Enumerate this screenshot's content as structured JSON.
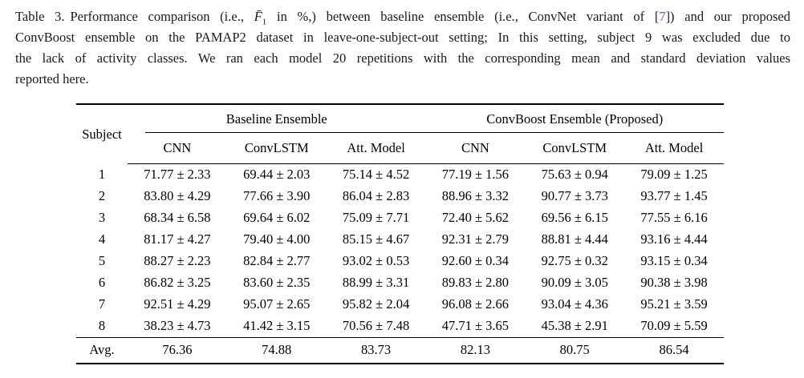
{
  "caption": {
    "label": "Table 3.",
    "line1_pre_math": "Performance comparison (i.e., ",
    "math_symbol": "F̄",
    "math_subscript": "1",
    "line1_mid": " in %,) between baseline ensemble (i.e., ConvNet variant of [",
    "ref_number": "7",
    "line1_post": "]) and our proposed",
    "line2": "ConvBoost ensemble on the PAMAP2 dataset in leave-one-subject-out setting; In this setting, subject 9 was excluded due to",
    "line3": "the lack of activity classes. We ran each model 20 repetitions with the corresponding mean and standard deviation values",
    "line4": "reported here."
  },
  "colors": {
    "citation_link": "#ac3ab0",
    "text": "#1a1a1a",
    "rule": "#000000"
  },
  "table": {
    "corner_header": "Subject",
    "groups": [
      "Baseline Ensemble",
      "ConvBoost Ensemble (Proposed)"
    ],
    "subheaders": [
      "CNN",
      "ConvLSTM",
      "Att. Model",
      "CNN",
      "ConvLSTM",
      "Att. Model"
    ],
    "rows": [
      {
        "subject": "1",
        "values": [
          "71.77 ± 2.33",
          "69.44 ± 2.03",
          "75.14 ± 4.52",
          "77.19 ± 1.56",
          "75.63 ± 0.94",
          "79.09 ± 1.25"
        ]
      },
      {
        "subject": "2",
        "values": [
          "83.80 ± 4.29",
          "77.66 ± 3.90",
          "86.04 ± 2.83",
          "88.96 ± 3.32",
          "90.77 ± 3.73",
          "93.77 ± 1.45"
        ]
      },
      {
        "subject": "3",
        "values": [
          "68.34 ± 6.58",
          "69.64 ± 6.02",
          "75.09 ± 7.71",
          "72.40 ± 5.62",
          "69.56 ± 6.15",
          "77.55 ± 6.16"
        ]
      },
      {
        "subject": "4",
        "values": [
          "81.17 ± 4.27",
          "79.40 ± 4.00",
          "85.15 ± 4.67",
          "92.31 ± 2.79",
          "88.81 ± 4.44",
          "93.16 ± 4.44"
        ]
      },
      {
        "subject": "5",
        "values": [
          "88.27 ± 2.23",
          "82.84 ± 2.77",
          "93.02 ± 0.53",
          "92.60 ± 0.34",
          "92.75 ± 0.32",
          "93.15 ± 0.34"
        ]
      },
      {
        "subject": "6",
        "values": [
          "86.82 ± 3.25",
          "83.60 ± 2.35",
          "88.99 ± 3.31",
          "89.83 ± 2.80",
          "90.09 ± 3.05",
          "90.38 ± 3.98"
        ]
      },
      {
        "subject": "7",
        "values": [
          "92.51 ± 4.29",
          "95.07 ± 2.65",
          "95.82 ± 2.04",
          "96.08 ± 2.66",
          "93.04 ± 4.36",
          "95.21 ± 3.59"
        ]
      },
      {
        "subject": "8",
        "values": [
          "38.23 ± 4.73",
          "41.42 ± 3.15",
          "70.56 ± 7.48",
          "47.71 ± 3.65",
          "45.38 ± 2.91",
          "70.09 ± 5.59"
        ]
      }
    ],
    "avg_row": {
      "subject": "Avg.",
      "values": [
        "76.36",
        "74.88",
        "83.73",
        "82.13",
        "80.75",
        "86.54"
      ]
    }
  }
}
